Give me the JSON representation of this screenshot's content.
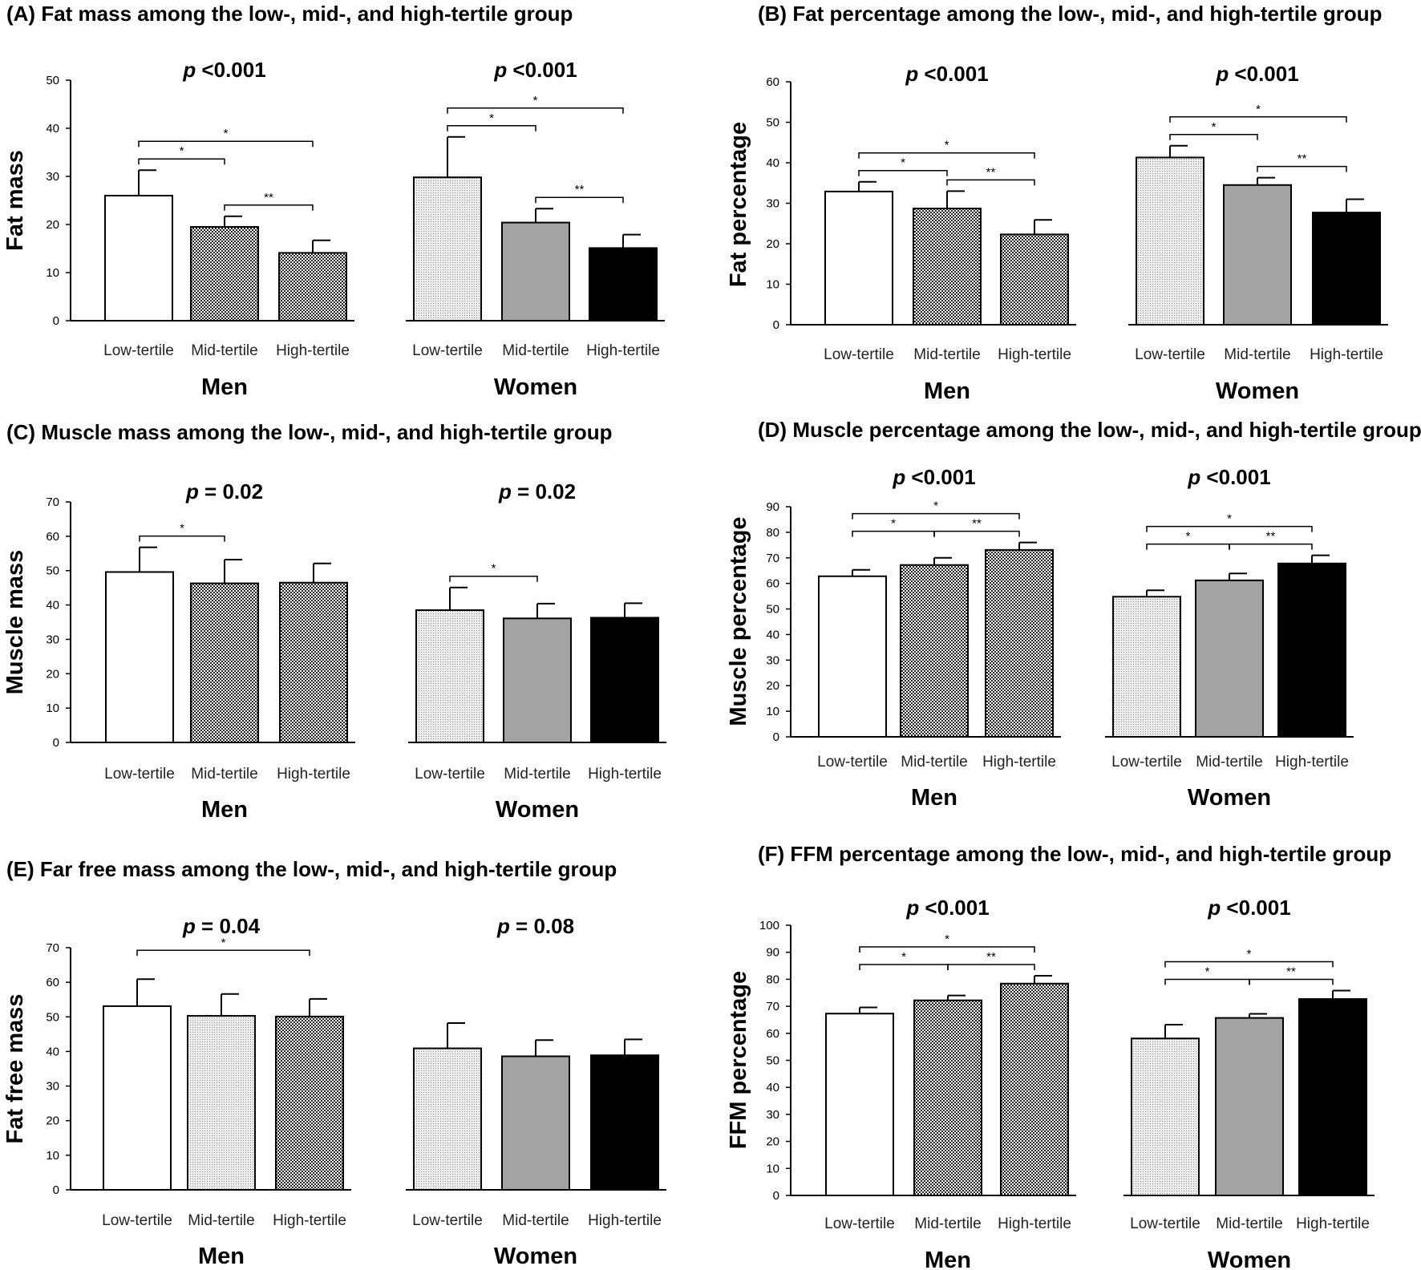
{
  "categories": [
    "Low-tertile",
    "Mid-tertile",
    "High-tertile"
  ],
  "groups": [
    "Men",
    "Women"
  ],
  "colors": {
    "white": "#ffffff",
    "dark_check": "#4a4a4a",
    "light_dots": "#e2e2e2",
    "gray": "#a3a3a3",
    "black": "#000000"
  },
  "chart_data": [
    {
      "type": "bar",
      "panel": "A",
      "title": "(A) Fat mass among the low-, mid-, and high-tertile group",
      "ylabel": "Fat mass",
      "ylim": [
        0,
        50
      ],
      "yticks": [
        0,
        10,
        20,
        30,
        40,
        50
      ],
      "groups": [
        {
          "name": "Men",
          "p_label": "p",
          "p_value": "<0.001",
          "values": [
            26,
            19.5,
            14.1
          ],
          "errors": [
            5.3,
            2.2,
            2.6
          ],
          "fills": [
            "white",
            "dark_check",
            "dark_check"
          ],
          "sig": [
            {
              "from": 0,
              "to": 1,
              "label": "*"
            },
            {
              "from": 0,
              "to": 2,
              "label": "*"
            },
            {
              "from": 1,
              "to": 2,
              "label": "**"
            }
          ]
        },
        {
          "name": "Women",
          "p_label": "p",
          "p_value": "<0.001",
          "values": [
            29.8,
            20.4,
            15.1
          ],
          "errors": [
            8.4,
            2.9,
            2.8
          ],
          "fills": [
            "light_dots",
            "gray",
            "black"
          ],
          "sig": [
            {
              "from": 0,
              "to": 1,
              "label": "*"
            },
            {
              "from": 0,
              "to": 2,
              "label": "*"
            },
            {
              "from": 1,
              "to": 2,
              "label": "**"
            }
          ]
        }
      ]
    },
    {
      "type": "bar",
      "panel": "B",
      "title": "(B) Fat percentage among the low-, mid-, and high-tertile group",
      "ylabel": "Fat percentage",
      "ylim": [
        0,
        60
      ],
      "yticks": [
        0,
        10,
        20,
        30,
        40,
        50,
        60
      ],
      "groups": [
        {
          "name": "Men",
          "p_label": "p",
          "p_value": "<0.001",
          "values": [
            32.9,
            28.7,
            22.3
          ],
          "errors": [
            2.4,
            4.3,
            3.6
          ],
          "fills": [
            "white",
            "dark_check",
            "dark_check"
          ],
          "sig": [
            {
              "from": 0,
              "to": 1,
              "label": "*"
            },
            {
              "from": 0,
              "to": 2,
              "label": "*"
            },
            {
              "from": 1,
              "to": 2,
              "label": "**"
            }
          ]
        },
        {
          "name": "Women",
          "p_label": "p",
          "p_value": "<0.001",
          "values": [
            41.3,
            34.5,
            27.7
          ],
          "errors": [
            2.9,
            1.8,
            3.3
          ],
          "fills": [
            "light_dots",
            "gray",
            "black"
          ],
          "sig": [
            {
              "from": 0,
              "to": 1,
              "label": "*"
            },
            {
              "from": 0,
              "to": 2,
              "label": "*"
            },
            {
              "from": 1,
              "to": 2,
              "label": "**"
            }
          ]
        }
      ]
    },
    {
      "type": "bar",
      "panel": "C",
      "title": "(C) Muscle mass among the low-, mid-, and high-tertile group",
      "ylabel": "Muscle mass",
      "ylim": [
        0,
        70
      ],
      "yticks": [
        0,
        10,
        20,
        30,
        40,
        50,
        60,
        70
      ],
      "groups": [
        {
          "name": "Men",
          "p_label": "p",
          "p_value": "= 0.02",
          "values": [
            49.6,
            46.3,
            46.5
          ],
          "errors": [
            7.2,
            6.9,
            5.6
          ],
          "fills": [
            "white",
            "dark_check",
            "dark_check"
          ],
          "sig": [
            {
              "from": 0,
              "to": 1,
              "label": "*"
            }
          ]
        },
        {
          "name": "Women",
          "p_label": "p",
          "p_value": "= 0.02",
          "values": [
            38.5,
            36.1,
            36.3
          ],
          "errors": [
            6.6,
            4.3,
            4.2
          ],
          "fills": [
            "light_dots",
            "gray",
            "black"
          ],
          "sig": [
            {
              "from": 0,
              "to": 1,
              "label": "*"
            }
          ]
        }
      ]
    },
    {
      "type": "bar",
      "panel": "D",
      "title": "(D) Muscle percentage among the low-, mid-, and high-tertile group",
      "ylabel": "Muscle percentage",
      "ylim": [
        0,
        90
      ],
      "yticks": [
        0,
        10,
        20,
        30,
        40,
        50,
        60,
        70,
        80,
        90
      ],
      "groups": [
        {
          "name": "Men",
          "p_label": "p",
          "p_value": "<0.001",
          "values": [
            62.8,
            67.2,
            73.1
          ],
          "errors": [
            2.5,
            2.8,
            2.9
          ],
          "fills": [
            "white",
            "dark_check",
            "dark_check"
          ],
          "sig": [
            {
              "from": 0,
              "to": 1,
              "label": "*"
            },
            {
              "from": 0,
              "to": 2,
              "label": "*"
            },
            {
              "from": 1,
              "to": 2,
              "label": "**"
            }
          ]
        },
        {
          "name": "Women",
          "p_label": "p",
          "p_value": "<0.001",
          "values": [
            54.8,
            61.2,
            67.8
          ],
          "errors": [
            2.5,
            2.7,
            3.2
          ],
          "fills": [
            "light_dots",
            "gray",
            "black"
          ],
          "sig": [
            {
              "from": 0,
              "to": 1,
              "label": "*"
            },
            {
              "from": 0,
              "to": 2,
              "label": "*"
            },
            {
              "from": 1,
              "to": 2,
              "label": "**"
            }
          ]
        }
      ]
    },
    {
      "type": "bar",
      "panel": "E",
      "title": "(E) Far free mass among the low-, mid-, and high-tertile group",
      "ylabel": "Fat free mass",
      "ylim": [
        0,
        70
      ],
      "yticks": [
        0,
        10,
        20,
        30,
        40,
        50,
        60,
        70
      ],
      "groups": [
        {
          "name": "Men",
          "p_label": "p",
          "p_value": "= 0.04",
          "values": [
            53.1,
            50.3,
            50.1
          ],
          "errors": [
            7.8,
            6.3,
            5.1
          ],
          "fills": [
            "white",
            "light_dots",
            "dark_check"
          ],
          "sig": [
            {
              "from": 0,
              "to": 2,
              "label": "*"
            }
          ]
        },
        {
          "name": "Women",
          "p_label": "p",
          "p_value": "= 0.08",
          "values": [
            40.9,
            38.6,
            38.9
          ],
          "errors": [
            7.3,
            4.7,
            4.6
          ],
          "fills": [
            "light_dots",
            "gray",
            "black"
          ],
          "sig": []
        }
      ]
    },
    {
      "type": "bar",
      "panel": "F",
      "title": "(F) FFM percentage among the low-, mid-, and high-tertile group",
      "ylabel": "FFM percentage",
      "ylim": [
        0,
        100
      ],
      "yticks": [
        0,
        10,
        20,
        30,
        40,
        50,
        60,
        70,
        80,
        90,
        100
      ],
      "groups": [
        {
          "name": "Men",
          "p_label": "p",
          "p_value": "<0.001",
          "values": [
            67.3,
            72.2,
            78.4
          ],
          "errors": [
            2.3,
            1.8,
            2.9
          ],
          "fills": [
            "white",
            "dark_check",
            "dark_check"
          ],
          "sig": [
            {
              "from": 0,
              "to": 1,
              "label": "*"
            },
            {
              "from": 0,
              "to": 2,
              "label": "*"
            },
            {
              "from": 1,
              "to": 2,
              "label": "**"
            }
          ]
        },
        {
          "name": "Women",
          "p_label": "p",
          "p_value": "<0.001",
          "values": [
            58.1,
            65.7,
            72.7
          ],
          "errors": [
            5.1,
            1.5,
            3.1
          ],
          "fills": [
            "light_dots",
            "gray",
            "black"
          ],
          "sig": [
            {
              "from": 0,
              "to": 1,
              "label": "*"
            },
            {
              "from": 0,
              "to": 2,
              "label": "*"
            },
            {
              "from": 1,
              "to": 2,
              "label": "**"
            }
          ]
        }
      ]
    }
  ]
}
